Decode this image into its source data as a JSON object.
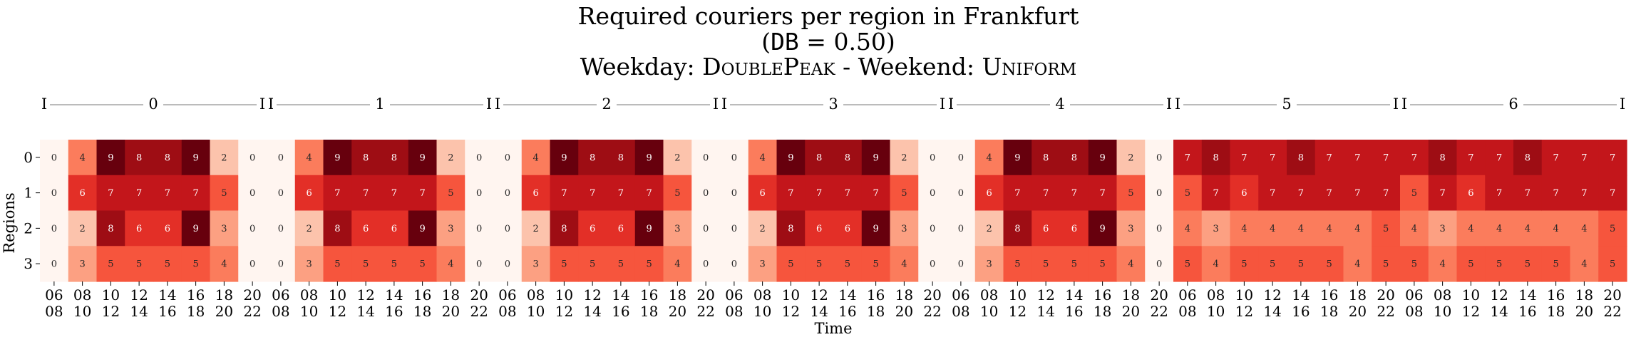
{
  "chart_data": {
    "type": "heatmap",
    "title_line1": "Required couriers per region in Frankfurt",
    "title_line2_prefix": "(",
    "title_line2_code": "DB",
    "title_line2_suffix": " = 0.50)",
    "title_line3_weekday_label": "Weekday: ",
    "title_line3_weekday_value": "DoublePeak",
    "title_line3_sep": " - Weekend: ",
    "title_line3_weekend_value": "Uniform",
    "xlabel": "Time",
    "ylabel": "Regions",
    "rows": [
      "0",
      "1",
      "2",
      "3"
    ],
    "day_marker": "I",
    "days": [
      {
        "label": "0",
        "columns": [
          {
            "tick_top": "06",
            "tick_bottom": "08",
            "values": [
              0,
              0,
              0,
              0
            ]
          },
          {
            "tick_top": "08",
            "tick_bottom": "10",
            "values": [
              4,
              6,
              2,
              3
            ]
          },
          {
            "tick_top": "10",
            "tick_bottom": "12",
            "values": [
              9,
              7,
              8,
              5
            ]
          },
          {
            "tick_top": "12",
            "tick_bottom": "14",
            "values": [
              8,
              7,
              6,
              5
            ]
          },
          {
            "tick_top": "14",
            "tick_bottom": "16",
            "values": [
              8,
              7,
              6,
              5
            ]
          },
          {
            "tick_top": "16",
            "tick_bottom": "18",
            "values": [
              9,
              7,
              9,
              5
            ]
          },
          {
            "tick_top": "18",
            "tick_bottom": "20",
            "values": [
              2,
              5,
              3,
              4
            ]
          },
          {
            "tick_top": "20",
            "tick_bottom": "22",
            "values": [
              0,
              0,
              0,
              0
            ]
          }
        ]
      },
      {
        "label": "1",
        "columns": [
          {
            "tick_top": "06",
            "tick_bottom": "08",
            "values": [
              0,
              0,
              0,
              0
            ]
          },
          {
            "tick_top": "08",
            "tick_bottom": "10",
            "values": [
              4,
              6,
              2,
              3
            ]
          },
          {
            "tick_top": "10",
            "tick_bottom": "12",
            "values": [
              9,
              7,
              8,
              5
            ]
          },
          {
            "tick_top": "12",
            "tick_bottom": "14",
            "values": [
              8,
              7,
              6,
              5
            ]
          },
          {
            "tick_top": "14",
            "tick_bottom": "16",
            "values": [
              8,
              7,
              6,
              5
            ]
          },
          {
            "tick_top": "16",
            "tick_bottom": "18",
            "values": [
              9,
              7,
              9,
              5
            ]
          },
          {
            "tick_top": "18",
            "tick_bottom": "20",
            "values": [
              2,
              5,
              3,
              4
            ]
          },
          {
            "tick_top": "20",
            "tick_bottom": "22",
            "values": [
              0,
              0,
              0,
              0
            ]
          }
        ]
      },
      {
        "label": "2",
        "columns": [
          {
            "tick_top": "06",
            "tick_bottom": "08",
            "values": [
              0,
              0,
              0,
              0
            ]
          },
          {
            "tick_top": "08",
            "tick_bottom": "10",
            "values": [
              4,
              6,
              2,
              3
            ]
          },
          {
            "tick_top": "10",
            "tick_bottom": "12",
            "values": [
              9,
              7,
              8,
              5
            ]
          },
          {
            "tick_top": "12",
            "tick_bottom": "14",
            "values": [
              8,
              7,
              6,
              5
            ]
          },
          {
            "tick_top": "14",
            "tick_bottom": "16",
            "values": [
              8,
              7,
              6,
              5
            ]
          },
          {
            "tick_top": "16",
            "tick_bottom": "18",
            "values": [
              9,
              7,
              9,
              5
            ]
          },
          {
            "tick_top": "18",
            "tick_bottom": "20",
            "values": [
              2,
              5,
              3,
              4
            ]
          },
          {
            "tick_top": "20",
            "tick_bottom": "22",
            "values": [
              0,
              0,
              0,
              0
            ]
          }
        ]
      },
      {
        "label": "3",
        "columns": [
          {
            "tick_top": "06",
            "tick_bottom": "08",
            "values": [
              0,
              0,
              0,
              0
            ]
          },
          {
            "tick_top": "08",
            "tick_bottom": "10",
            "values": [
              4,
              6,
              2,
              3
            ]
          },
          {
            "tick_top": "10",
            "tick_bottom": "12",
            "values": [
              9,
              7,
              8,
              5
            ]
          },
          {
            "tick_top": "12",
            "tick_bottom": "14",
            "values": [
              8,
              7,
              6,
              5
            ]
          },
          {
            "tick_top": "14",
            "tick_bottom": "16",
            "values": [
              8,
              7,
              6,
              5
            ]
          },
          {
            "tick_top": "16",
            "tick_bottom": "18",
            "values": [
              9,
              7,
              9,
              5
            ]
          },
          {
            "tick_top": "18",
            "tick_bottom": "20",
            "values": [
              2,
              5,
              3,
              4
            ]
          },
          {
            "tick_top": "20",
            "tick_bottom": "22",
            "values": [
              0,
              0,
              0,
              0
            ]
          }
        ]
      },
      {
        "label": "4",
        "columns": [
          {
            "tick_top": "06",
            "tick_bottom": "08",
            "values": [
              0,
              0,
              0,
              0
            ]
          },
          {
            "tick_top": "08",
            "tick_bottom": "10",
            "values": [
              4,
              6,
              2,
              3
            ]
          },
          {
            "tick_top": "10",
            "tick_bottom": "12",
            "values": [
              9,
              7,
              8,
              5
            ]
          },
          {
            "tick_top": "12",
            "tick_bottom": "14",
            "values": [
              8,
              7,
              6,
              5
            ]
          },
          {
            "tick_top": "14",
            "tick_bottom": "16",
            "values": [
              8,
              7,
              6,
              5
            ]
          },
          {
            "tick_top": "16",
            "tick_bottom": "18",
            "values": [
              9,
              7,
              9,
              5
            ]
          },
          {
            "tick_top": "18",
            "tick_bottom": "20",
            "values": [
              2,
              5,
              3,
              4
            ]
          },
          {
            "tick_top": "20",
            "tick_bottom": "22",
            "values": [
              0,
              0,
              0,
              0
            ]
          }
        ]
      },
      {
        "label": "5",
        "columns": [
          {
            "tick_top": "06",
            "tick_bottom": "08",
            "values": [
              7,
              5,
              4,
              5
            ]
          },
          {
            "tick_top": "08",
            "tick_bottom": "10",
            "values": [
              8,
              7,
              3,
              4
            ]
          },
          {
            "tick_top": "10",
            "tick_bottom": "12",
            "values": [
              7,
              6,
              4,
              5
            ]
          },
          {
            "tick_top": "12",
            "tick_bottom": "14",
            "values": [
              7,
              7,
              4,
              5
            ]
          },
          {
            "tick_top": "14",
            "tick_bottom": "16",
            "values": [
              8,
              7,
              4,
              5
            ]
          },
          {
            "tick_top": "16",
            "tick_bottom": "18",
            "values": [
              7,
              7,
              4,
              5
            ]
          },
          {
            "tick_top": "18",
            "tick_bottom": "20",
            "values": [
              7,
              7,
              4,
              4
            ]
          },
          {
            "tick_top": "20",
            "tick_bottom": "22",
            "values": [
              7,
              7,
              5,
              5
            ]
          }
        ]
      },
      {
        "label": "6",
        "columns": [
          {
            "tick_top": "06",
            "tick_bottom": "08",
            "values": [
              7,
              5,
              4,
              5
            ]
          },
          {
            "tick_top": "08",
            "tick_bottom": "10",
            "values": [
              8,
              7,
              3,
              4
            ]
          },
          {
            "tick_top": "10",
            "tick_bottom": "12",
            "values": [
              7,
              6,
              4,
              5
            ]
          },
          {
            "tick_top": "12",
            "tick_bottom": "14",
            "values": [
              7,
              7,
              4,
              5
            ]
          },
          {
            "tick_top": "14",
            "tick_bottom": "16",
            "values": [
              8,
              7,
              4,
              5
            ]
          },
          {
            "tick_top": "16",
            "tick_bottom": "18",
            "values": [
              7,
              7,
              4,
              5
            ]
          },
          {
            "tick_top": "18",
            "tick_bottom": "20",
            "values": [
              7,
              7,
              4,
              4
            ]
          },
          {
            "tick_top": "20",
            "tick_bottom": "22",
            "values": [
              7,
              7,
              5,
              5
            ]
          }
        ]
      }
    ],
    "color_scale": {
      "name": "Reds",
      "vmin": 0,
      "vmax": 9,
      "stops": [
        "#fff5f0",
        "#fee0d2",
        "#fcbba1",
        "#fc9272",
        "#fb6a4a",
        "#ef3b2c",
        "#cb181d",
        "#a50f15",
        "#67000d"
      ]
    },
    "colorbar": false,
    "grid": false,
    "legend": "none"
  }
}
